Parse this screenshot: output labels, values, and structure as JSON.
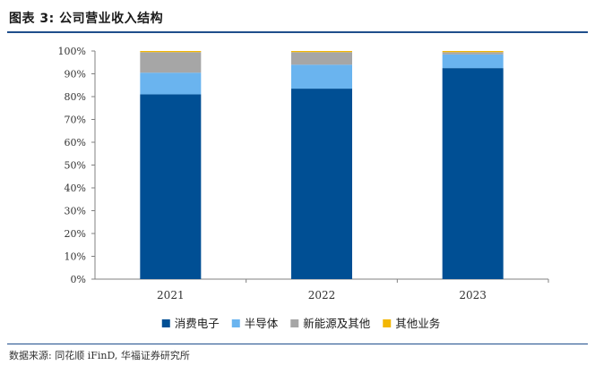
{
  "figure_title": "图表 3: 公司营业收入结构",
  "source_note": "数据来源: 同花顺 iFinD, 华福证券研究所",
  "chart_data": {
    "type": "bar",
    "stacked": true,
    "categories": [
      "2021",
      "2022",
      "2023"
    ],
    "series": [
      {
        "name": "消费电子",
        "color": "#004f94",
        "values": [
          81,
          83.5,
          92.5
        ]
      },
      {
        "name": "半导体",
        "color": "#6ab4ef",
        "values": [
          9.5,
          10.5,
          6
        ]
      },
      {
        "name": "新能源及其他",
        "color": "#a6a6a6",
        "values": [
          9,
          5.5,
          1
        ]
      },
      {
        "name": "其他业务",
        "color": "#f2b705",
        "values": [
          0.5,
          0.5,
          0.5
        ]
      }
    ],
    "ylim": [
      0,
      100
    ],
    "y_ticks": [
      "0%",
      "10%",
      "20%",
      "30%",
      "40%",
      "50%",
      "60%",
      "70%",
      "80%",
      "90%",
      "100%"
    ],
    "grid": false,
    "legend_position": "bottom"
  }
}
